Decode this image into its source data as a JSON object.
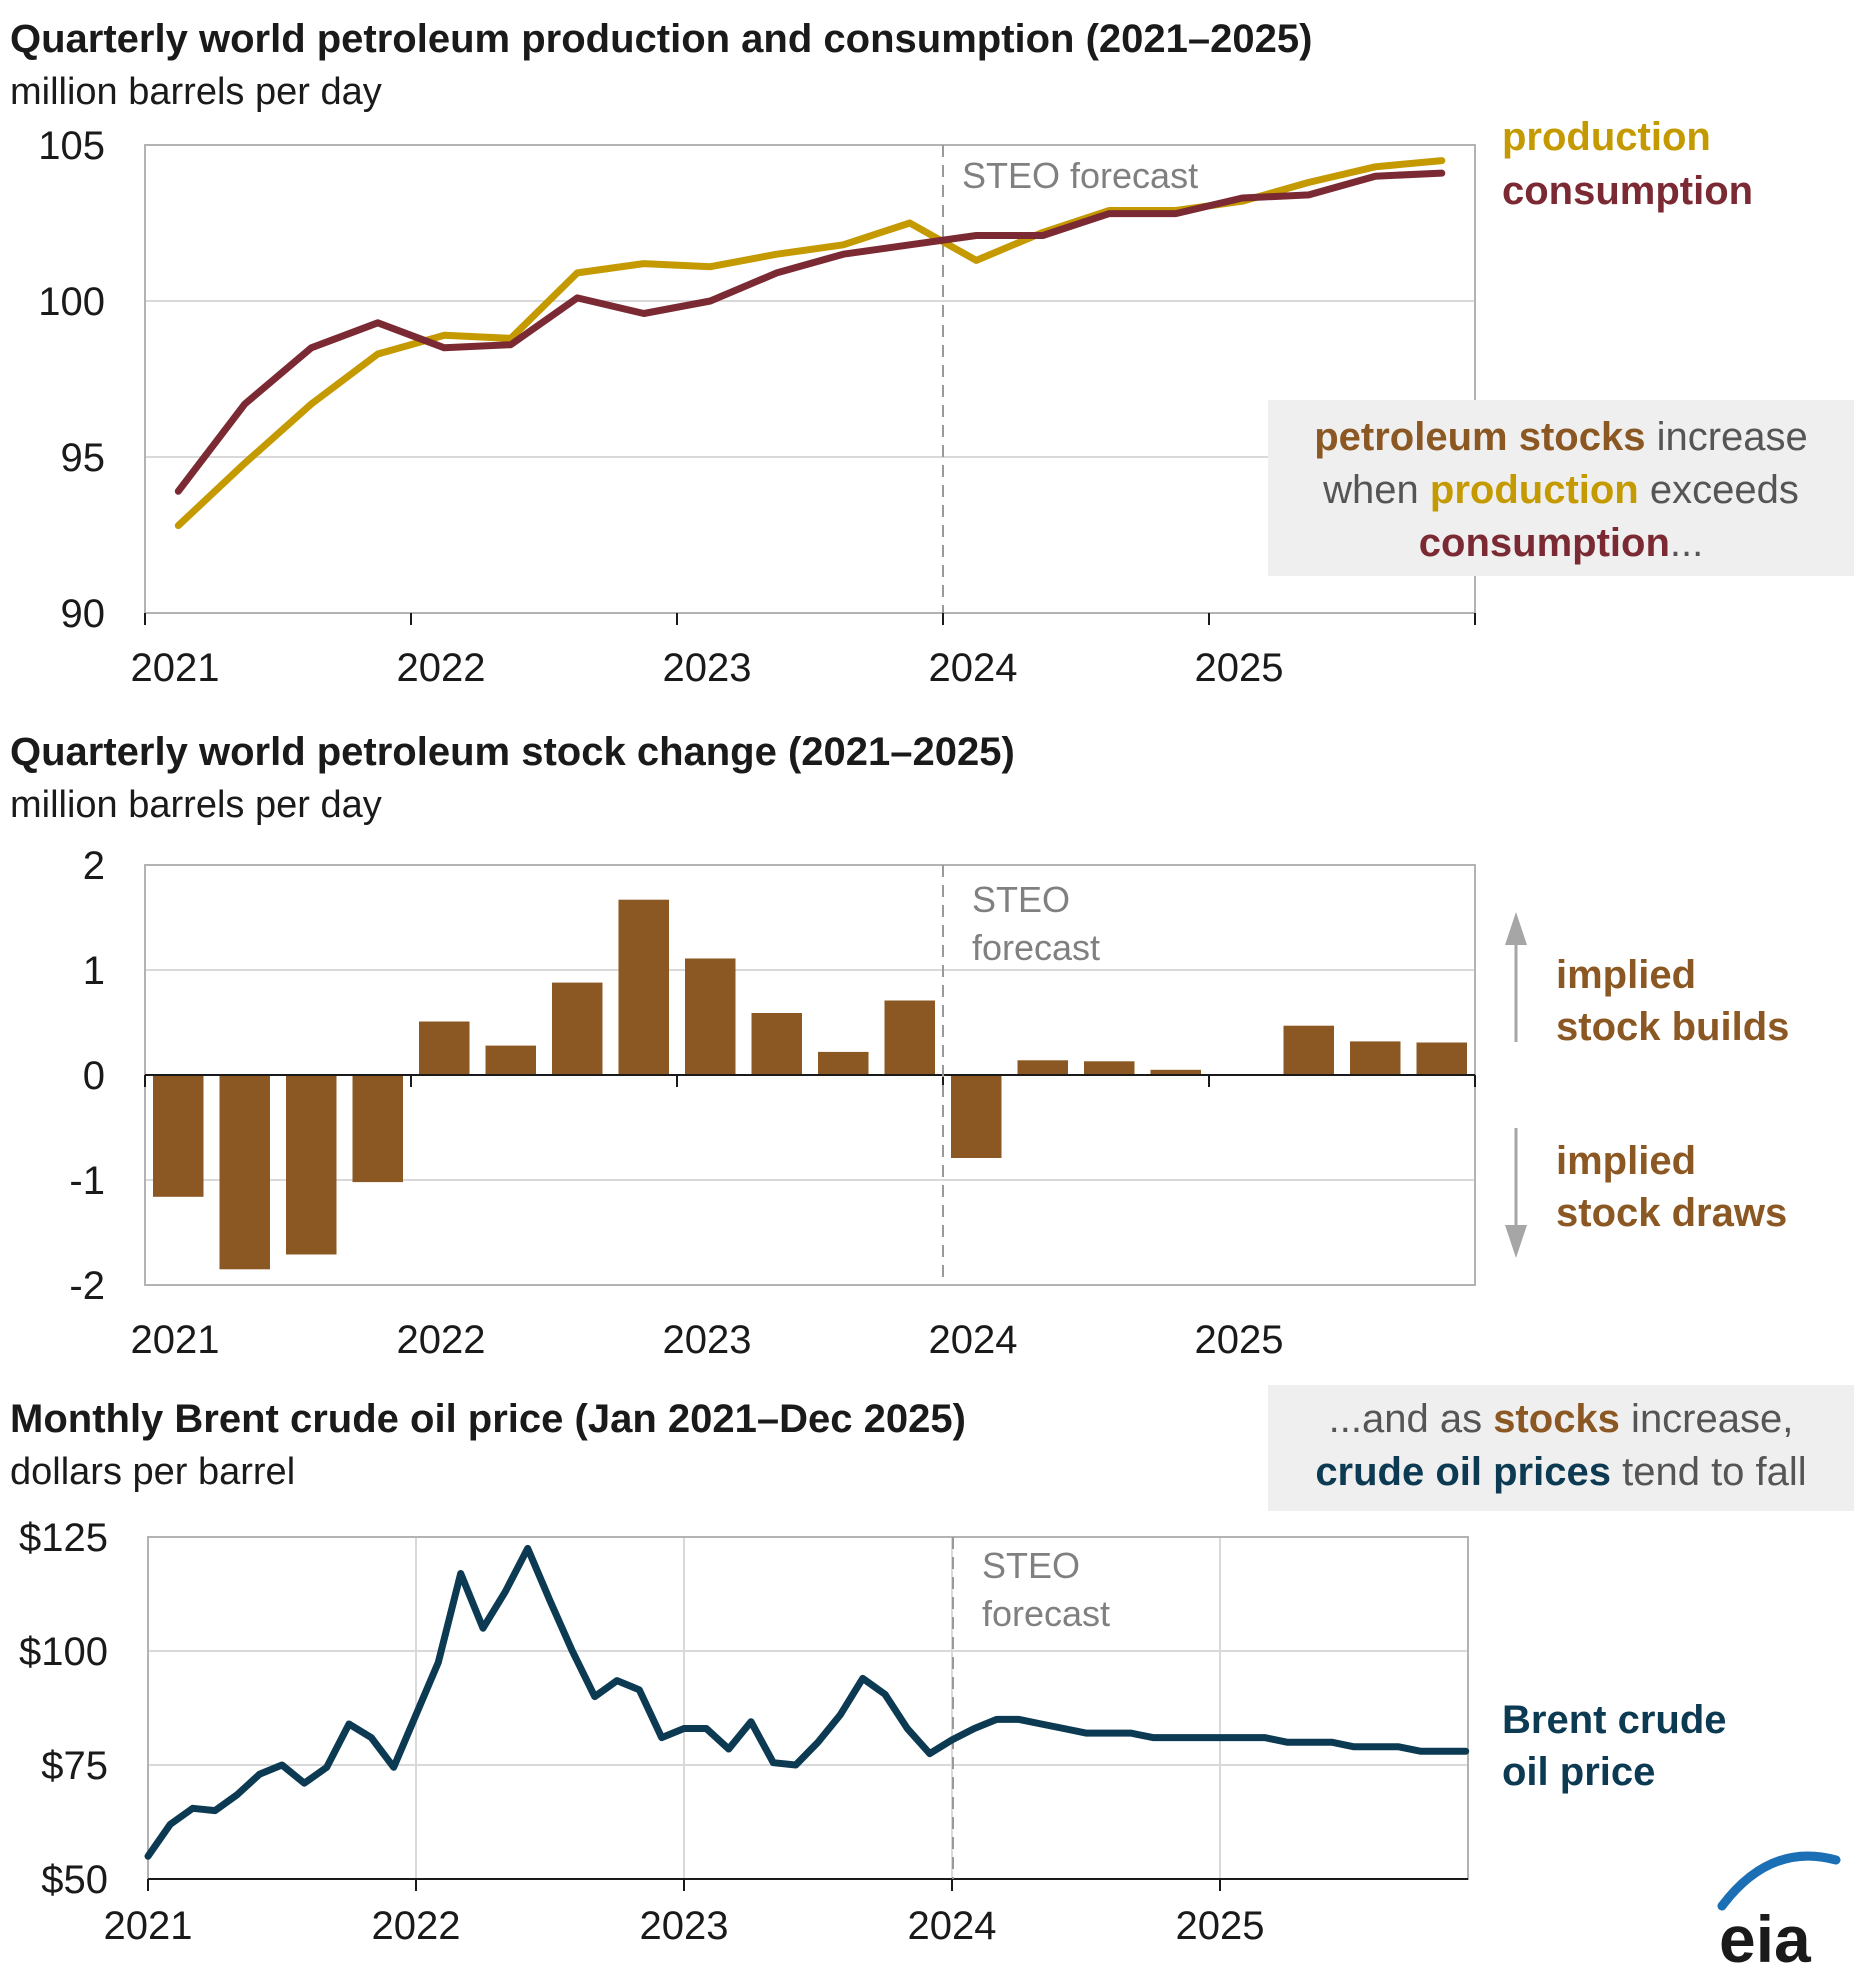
{
  "colors": {
    "production": "#c49a00",
    "consumption": "#7b2a33",
    "stock_bar": "#8b5722",
    "brent": "#0c3a52",
    "forecast_text": "#808080",
    "annotation_box": "#efefef",
    "eia_blue": "#1b6fb5"
  },
  "chart_data": [
    {
      "type": "line",
      "title": "Quarterly world petroleum production and consumption (2021–2025)",
      "subtitle": "million barrels per day",
      "forecast_label": "STEO forecast",
      "x_tick_labels": [
        "2021",
        "2022",
        "2023",
        "2024",
        "2025"
      ],
      "y_tick_labels": [
        "90",
        "95",
        "100",
        "105"
      ],
      "ylim": [
        90,
        105
      ],
      "x": [
        "2021Q1",
        "2021Q2",
        "2021Q3",
        "2021Q4",
        "2022Q1",
        "2022Q2",
        "2022Q3",
        "2022Q4",
        "2023Q1",
        "2023Q2",
        "2023Q3",
        "2023Q4",
        "2024Q1",
        "2024Q2",
        "2024Q3",
        "2024Q4",
        "2025Q1",
        "2025Q2",
        "2025Q3",
        "2025Q4"
      ],
      "series": [
        {
          "name": "production",
          "values": [
            92.8,
            94.8,
            96.7,
            98.3,
            98.9,
            98.8,
            100.9,
            101.2,
            101.1,
            101.5,
            101.8,
            102.5,
            101.3,
            102.2,
            102.9,
            102.9,
            103.2,
            103.8,
            104.3,
            104.5
          ]
        },
        {
          "name": "consumption",
          "values": [
            93.9,
            96.7,
            98.5,
            99.3,
            98.5,
            98.6,
            100.1,
            99.6,
            100.0,
            100.9,
            101.5,
            101.8,
            102.1,
            102.1,
            102.8,
            102.8,
            103.3,
            103.4,
            104.0,
            104.1
          ]
        }
      ],
      "legend_placement": "right",
      "annotation": {
        "p1_hl": "petroleum stocks",
        "p1_rest": " increase",
        "p2_start": "when ",
        "p2_hl": "production",
        "p2_rest": " exceeds",
        "p3_hl": "consumption",
        "p3_rest": "..."
      }
    },
    {
      "type": "bar",
      "title": "Quarterly world petroleum stock change (2021–2025)",
      "subtitle": "million barrels per day",
      "forecast_label_lines": [
        "STEO",
        "forecast"
      ],
      "x_tick_labels": [
        "2021",
        "2022",
        "2023",
        "2024",
        "2025"
      ],
      "y_tick_labels": [
        "-2",
        "-1",
        "0",
        "1",
        "2"
      ],
      "ylim": [
        -2,
        2
      ],
      "x": [
        "2021Q1",
        "2021Q2",
        "2021Q3",
        "2021Q4",
        "2022Q1",
        "2022Q2",
        "2022Q3",
        "2022Q4",
        "2023Q1",
        "2023Q2",
        "2023Q3",
        "2023Q4",
        "2024Q1",
        "2024Q2",
        "2024Q3",
        "2024Q4",
        "2025Q1",
        "2025Q2",
        "2025Q3",
        "2025Q4"
      ],
      "values": [
        -1.16,
        -1.85,
        -1.71,
        -1.02,
        0.51,
        0.28,
        0.88,
        1.67,
        1.11,
        0.59,
        0.22,
        0.71,
        -0.79,
        0.14,
        0.13,
        0.05,
        0.0,
        0.47,
        0.32,
        0.31
      ],
      "legend_builds": [
        "implied",
        "stock builds"
      ],
      "legend_draws": [
        "implied",
        "stock draws"
      ]
    },
    {
      "type": "line",
      "title": "Monthly Brent crude oil price (Jan 2021–Dec 2025)",
      "subtitle": "dollars per barrel",
      "forecast_label_lines": [
        "STEO",
        "forecast"
      ],
      "x_tick_labels": [
        "2021",
        "2022",
        "2023",
        "2024",
        "2025"
      ],
      "y_tick_labels": [
        "$50",
        "$75",
        "$100",
        "$125"
      ],
      "ylim": [
        50,
        125
      ],
      "x_start": "2021-01",
      "x_end": "2025-12",
      "series": [
        {
          "name": "Brent crude oil price",
          "values": [
            55,
            62,
            65.5,
            65,
            68.5,
            73,
            75,
            71,
            74.5,
            84,
            81,
            74.5,
            86,
            97.5,
            117,
            105,
            113,
            122.5,
            111,
            100,
            90,
            93.5,
            91.5,
            81,
            83,
            83,
            78.5,
            84.5,
            75.5,
            75,
            80,
            86,
            94,
            90.5,
            83,
            77.5,
            80.5,
            83,
            85,
            85,
            84,
            83,
            82,
            82,
            82,
            81,
            81,
            81,
            81,
            81,
            81,
            80,
            80,
            80,
            79,
            79,
            79,
            78,
            78,
            78
          ]
        }
      ],
      "legend_lines": [
        "Brent crude",
        "oil price"
      ],
      "annotation": {
        "l1_start": "...and as ",
        "l1_hl": "stocks",
        "l1_rest": " increase,",
        "l2_hl": "crude oil prices",
        "l2_rest": " tend to fall"
      }
    }
  ],
  "logo": {
    "text": "eia"
  }
}
